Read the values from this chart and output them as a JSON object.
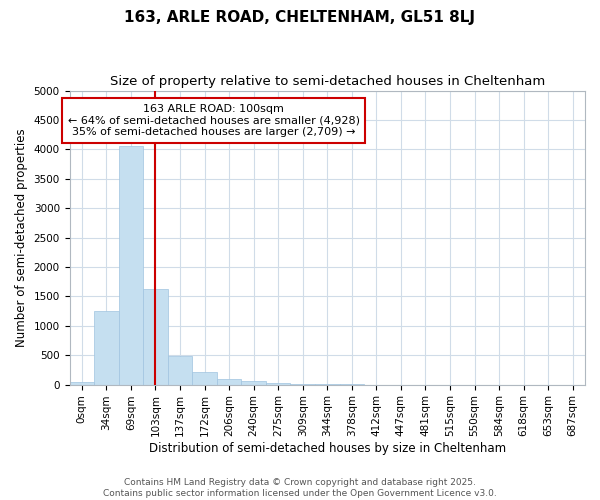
{
  "title": "163, ARLE ROAD, CHELTENHAM, GL51 8LJ",
  "subtitle": "Size of property relative to semi-detached houses in Cheltenham",
  "xlabel": "Distribution of semi-detached houses by size in Cheltenham",
  "ylabel": "Number of semi-detached properties",
  "bin_labels": [
    "0sqm",
    "34sqm",
    "69sqm",
    "103sqm",
    "137sqm",
    "172sqm",
    "206sqm",
    "240sqm",
    "275sqm",
    "309sqm",
    "344sqm",
    "378sqm",
    "412sqm",
    "447sqm",
    "481sqm",
    "515sqm",
    "550sqm",
    "584sqm",
    "618sqm",
    "653sqm",
    "687sqm"
  ],
  "bar_heights": [
    50,
    1250,
    4050,
    1620,
    480,
    220,
    100,
    55,
    20,
    10,
    5,
    2,
    1,
    0,
    0,
    0,
    0,
    0,
    0,
    0,
    0
  ],
  "bar_color": "#c5dff0",
  "bar_edge_color": "#a0c4e0",
  "vline_x": 3,
  "vline_color": "#cc0000",
  "annotation_title": "163 ARLE ROAD: 100sqm",
  "annotation_line1": "← 64% of semi-detached houses are smaller (4,928)",
  "annotation_line2": "35% of semi-detached houses are larger (2,709) →",
  "annotation_box_color": "#ffffff",
  "annotation_box_edge_color": "#cc0000",
  "ylim": [
    0,
    5000
  ],
  "yticks": [
    0,
    500,
    1000,
    1500,
    2000,
    2500,
    3000,
    3500,
    4000,
    4500,
    5000
  ],
  "footer1": "Contains HM Land Registry data © Crown copyright and database right 2025.",
  "footer2": "Contains public sector information licensed under the Open Government Licence v3.0.",
  "bg_color": "#ffffff",
  "grid_color": "#d0dce8",
  "title_fontsize": 11,
  "subtitle_fontsize": 9.5,
  "axis_label_fontsize": 8.5,
  "tick_fontsize": 7.5,
  "annotation_fontsize": 8,
  "footer_fontsize": 6.5
}
